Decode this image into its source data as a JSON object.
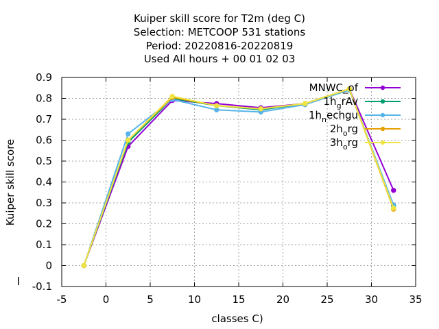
{
  "chart_data": {
    "type": "line",
    "title_lines": [
      "Kuiper skill score  for T2m (deg C)",
      "Selection: METCOOP    531 stations",
      "Period: 20220816-20220819",
      "Used  All hours + 00 01 02 03"
    ],
    "xlabel": "classes C)",
    "ylabel": "Kuiper skill score",
    "xlim": [
      -5,
      35
    ],
    "ylim": [
      -0.1,
      0.9
    ],
    "xticks": [
      -5,
      0,
      5,
      10,
      15,
      20,
      25,
      30,
      35
    ],
    "yticks": [
      -0.1,
      0,
      0.1,
      0.2,
      0.3,
      0.4,
      0.5,
      0.6,
      0.7,
      0.8,
      0.9
    ],
    "grid": true,
    "legend_position": "top-right",
    "x": [
      -2.5,
      2.5,
      7.5,
      12.5,
      17.5,
      22.5,
      27.5,
      32.5
    ],
    "series": [
      {
        "name": "MNWC_of",
        "name_main": "MNWC",
        "name_sub": "",
        "name_rest": "_of",
        "color": "#9400d3",
        "values": [
          0.0,
          0.57,
          0.79,
          0.775,
          0.755,
          0.775,
          0.845,
          0.36
        ]
      },
      {
        "name": "1h_grAv",
        "name_main": "1h",
        "name_sub": "g",
        "name_rest": "rAv",
        "color": "#009e73",
        "values": [
          0.0,
          0.59,
          0.8,
          0.765,
          0.745,
          0.775,
          0.845,
          0.285
        ]
      },
      {
        "name": "1h_nechgu",
        "name_main": "1h",
        "name_sub": "n",
        "name_rest": "echgu",
        "color": "#56b4e9",
        "values": [
          0.0,
          0.63,
          0.795,
          0.745,
          0.735,
          0.77,
          0.84,
          0.29
        ]
      },
      {
        "name": "2h_org",
        "name_main": "2h",
        "name_sub": "o",
        "name_rest": "rg",
        "color": "#e69f00",
        "values": [
          0.0,
          0.6,
          0.805,
          0.765,
          0.75,
          0.775,
          0.845,
          0.27
        ]
      },
      {
        "name": "3h_org",
        "name_main": "3h",
        "name_sub": "o",
        "name_rest": "rg",
        "color": "#f0e442",
        "values": [
          0.0,
          0.6,
          0.81,
          0.765,
          0.75,
          0.775,
          0.845,
          0.275
        ]
      }
    ]
  }
}
